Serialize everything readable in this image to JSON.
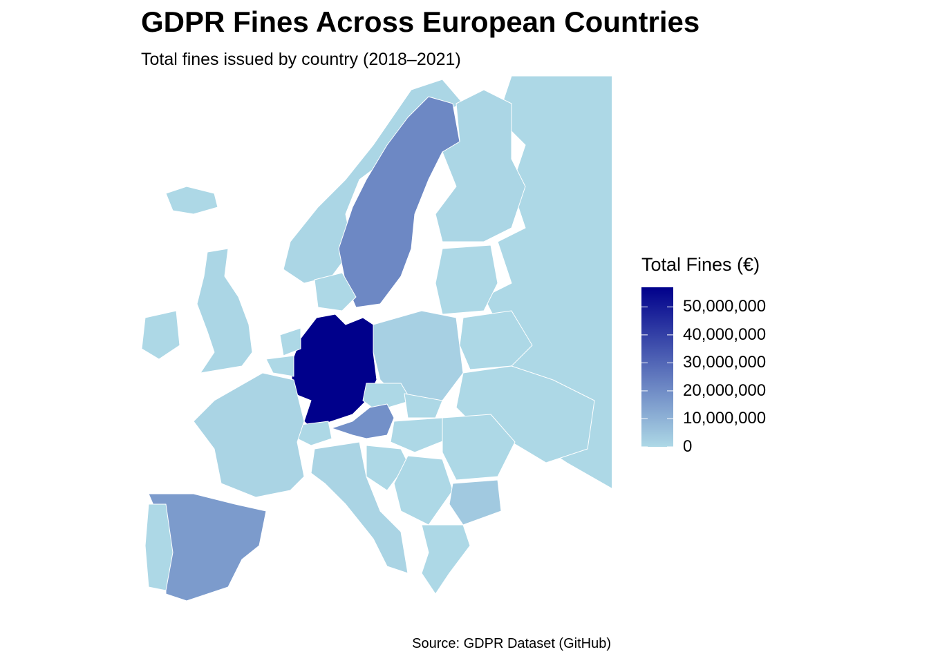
{
  "title": "GDPR Fines Across European Countries",
  "subtitle": "Total fines issued by country (2018–2021)",
  "caption": "Source: GDPR Dataset (GitHub)",
  "colors": {
    "low": "#ADD8E6",
    "high": "#00008B",
    "border": "#ffffff",
    "background": "#ffffff"
  },
  "chart_data": {
    "type": "choropleth",
    "legend": {
      "title": "Total Fines (€)",
      "min": 0,
      "max": 57000000,
      "ticks": [
        {
          "value": 50000000,
          "label": "50,000,000"
        },
        {
          "value": 40000000,
          "label": "40,000,000"
        },
        {
          "value": 30000000,
          "label": "30,000,000"
        },
        {
          "value": 20000000,
          "label": "20,000,000"
        },
        {
          "value": 10000000,
          "label": "10,000,000"
        },
        {
          "value": 0,
          "label": "0"
        }
      ],
      "placement": "right"
    },
    "regions": [
      {
        "name": "Germany",
        "value": 57000000
      },
      {
        "name": "Sweden",
        "value": 21000000
      },
      {
        "name": "Austria",
        "value": 19000000
      },
      {
        "name": "Spain",
        "value": 16000000
      },
      {
        "name": "Bulgaria",
        "value": 4000000
      },
      {
        "name": "Poland",
        "value": 2000000
      },
      {
        "name": "France",
        "value": 1000000
      },
      {
        "name": "Italy",
        "value": 1000000
      },
      {
        "name": "Norway",
        "value": 500000
      },
      {
        "name": "Finland",
        "value": 500000
      },
      {
        "name": "United Kingdom",
        "value": 500000
      },
      {
        "name": "Ireland",
        "value": 0
      },
      {
        "name": "Portugal",
        "value": 0
      },
      {
        "name": "Netherlands",
        "value": 0
      },
      {
        "name": "Belgium",
        "value": 0
      },
      {
        "name": "Switzerland",
        "value": 0
      },
      {
        "name": "Denmark",
        "value": 0
      },
      {
        "name": "Czechia",
        "value": 0
      },
      {
        "name": "Slovakia",
        "value": 0
      },
      {
        "name": "Hungary",
        "value": 0
      },
      {
        "name": "Romania",
        "value": 0
      },
      {
        "name": "Greece",
        "value": 0
      },
      {
        "name": "Croatia",
        "value": 0
      },
      {
        "name": "Serbia",
        "value": 0
      },
      {
        "name": "Baltics",
        "value": 0
      },
      {
        "name": "Belarus",
        "value": 0
      },
      {
        "name": "Ukraine",
        "value": 0
      },
      {
        "name": "Russia",
        "value": 0
      },
      {
        "name": "Iceland",
        "value": 0
      }
    ]
  }
}
